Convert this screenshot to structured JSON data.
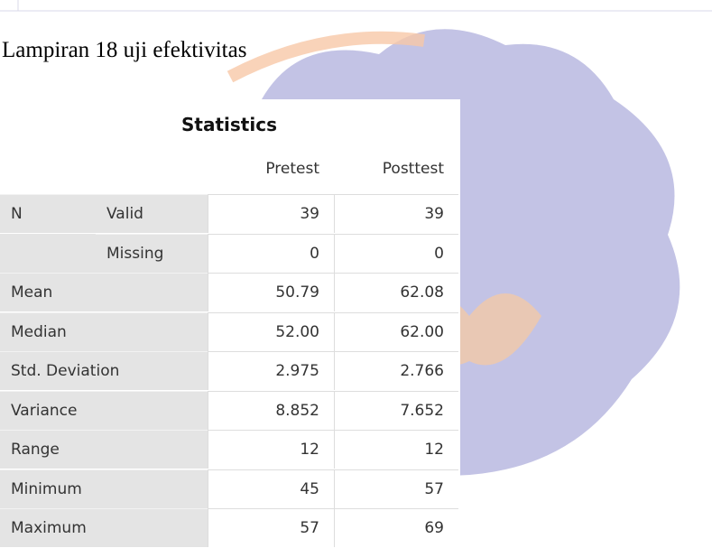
{
  "header": {
    "title": "Lampiran 18 uji efektivitas"
  },
  "table": {
    "title": "Statistics",
    "columns": [
      "Pretest",
      "Posttest"
    ],
    "rows": [
      {
        "group": "N",
        "label": "Valid",
        "values": [
          "39",
          "39"
        ]
      },
      {
        "label": "Missing",
        "values": [
          "0",
          "0"
        ]
      },
      {
        "label": "Mean",
        "values": [
          "50.79",
          "62.08"
        ]
      },
      {
        "label": "Median",
        "values": [
          "52.00",
          "62.00"
        ]
      },
      {
        "label": "Std. Deviation",
        "values": [
          "2.975",
          "2.766"
        ]
      },
      {
        "label": "Variance",
        "values": [
          "8.852",
          "7.652"
        ]
      },
      {
        "label": "Range",
        "values": [
          "12",
          "12"
        ]
      },
      {
        "label": "Minimum",
        "values": [
          "45",
          "57"
        ]
      },
      {
        "label": "Maximum",
        "values": [
          "57",
          "69"
        ]
      }
    ]
  }
}
